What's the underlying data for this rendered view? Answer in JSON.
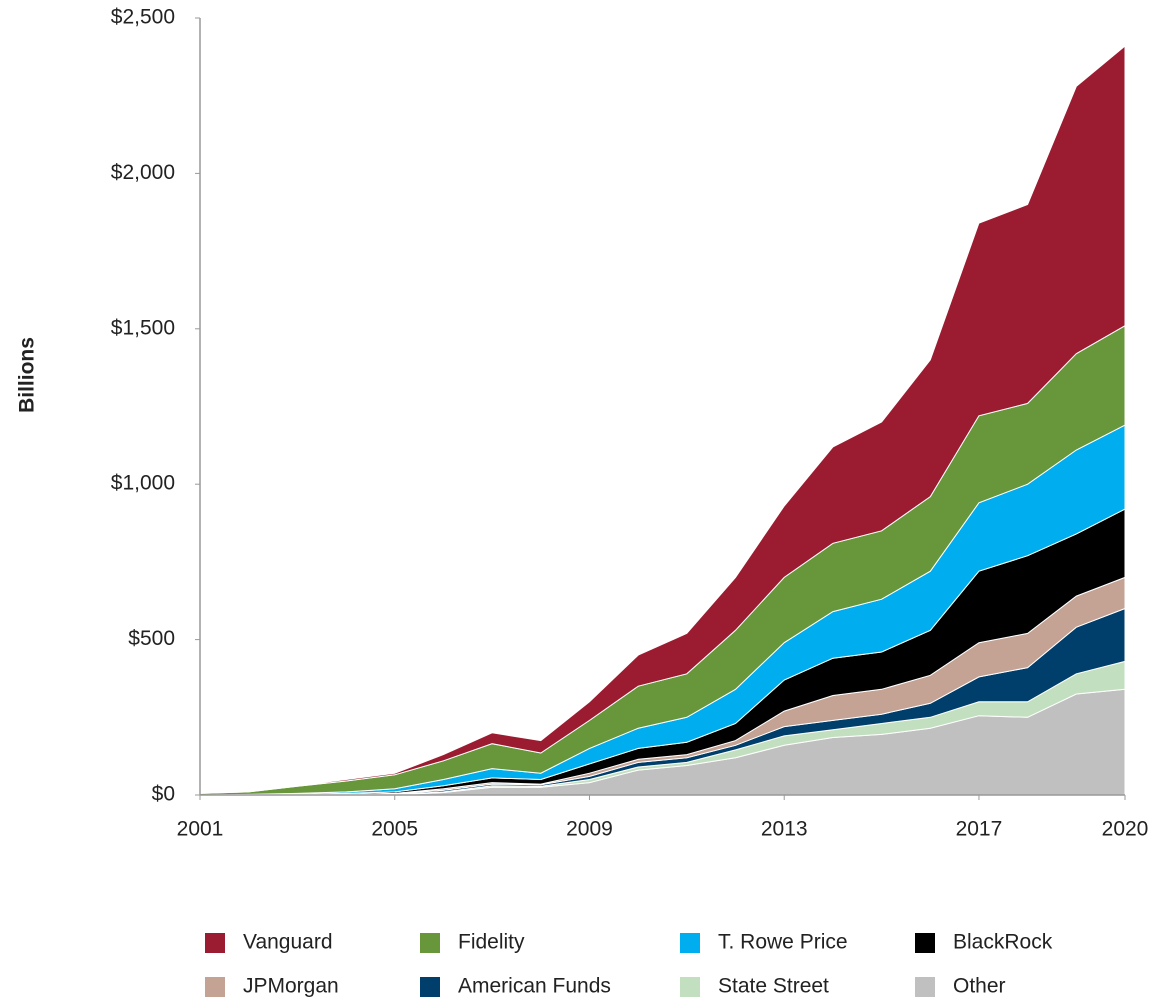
{
  "chart_data": {
    "type": "stacked-area",
    "y_label": "Billions",
    "x": [
      2001,
      2002,
      2003,
      2004,
      2005,
      2006,
      2007,
      2008,
      2009,
      2010,
      2011,
      2012,
      2013,
      2014,
      2015,
      2016,
      2017,
      2018,
      2019,
      2020
    ],
    "xlim": [
      2001,
      2020
    ],
    "xticks": [
      2001,
      2005,
      2009,
      2013,
      2017,
      2020
    ],
    "ylim": [
      0,
      2500
    ],
    "yticks": [
      {
        "value": 0,
        "label": "$0"
      },
      {
        "value": 500,
        "label": "$500"
      },
      {
        "value": 1000,
        "label": "$1,000"
      },
      {
        "value": 1500,
        "label": "$1,500"
      },
      {
        "value": 2000,
        "label": "$2,000"
      },
      {
        "value": 2500,
        "label": "$2,500"
      }
    ],
    "series": [
      {
        "name": "Vanguard",
        "color": "#9b1b30",
        "values": [
          0,
          0,
          2,
          5,
          5,
          20,
          35,
          40,
          60,
          100,
          130,
          170,
          230,
          310,
          350,
          440,
          620,
          640,
          860,
          900
        ]
      },
      {
        "name": "Fidelity",
        "color": "#68963a",
        "values": [
          5,
          8,
          23,
          35,
          45,
          60,
          80,
          65,
          90,
          135,
          140,
          190,
          210,
          220,
          220,
          240,
          280,
          260,
          310,
          320
        ]
      },
      {
        "name": "T. Rowe Price",
        "color": "#00aeef",
        "values": [
          0,
          2,
          3,
          5,
          10,
          20,
          30,
          20,
          50,
          65,
          80,
          110,
          120,
          150,
          170,
          190,
          220,
          230,
          270,
          270
        ]
      },
      {
        "name": "BlackRock",
        "color": "#000000",
        "values": [
          0,
          0,
          2,
          3,
          5,
          10,
          15,
          15,
          30,
          35,
          40,
          55,
          100,
          120,
          120,
          145,
          230,
          250,
          200,
          220
        ]
      },
      {
        "name": "JPMorgan",
        "color": "#c4a394",
        "values": [
          0,
          0,
          0,
          0,
          1,
          5,
          5,
          2,
          10,
          10,
          10,
          15,
          50,
          80,
          80,
          90,
          110,
          110,
          100,
          100
        ]
      },
      {
        "name": "American Funds",
        "color": "#003e6b",
        "values": [
          0,
          0,
          0,
          1,
          2,
          5,
          5,
          5,
          10,
          15,
          15,
          15,
          30,
          30,
          30,
          45,
          80,
          110,
          150,
          170
        ]
      },
      {
        "name": "State Street",
        "color": "#c2e0c0",
        "values": [
          0,
          0,
          0,
          1,
          1,
          2,
          5,
          3,
          10,
          10,
          10,
          25,
          30,
          25,
          35,
          35,
          45,
          50,
          65,
          90
        ]
      },
      {
        "name": "Other",
        "color": "#c0c0c0",
        "values": [
          0,
          0,
          0,
          0,
          1,
          8,
          25,
          25,
          40,
          80,
          95,
          120,
          160,
          185,
          195,
          215,
          255,
          250,
          325,
          340
        ]
      }
    ]
  }
}
